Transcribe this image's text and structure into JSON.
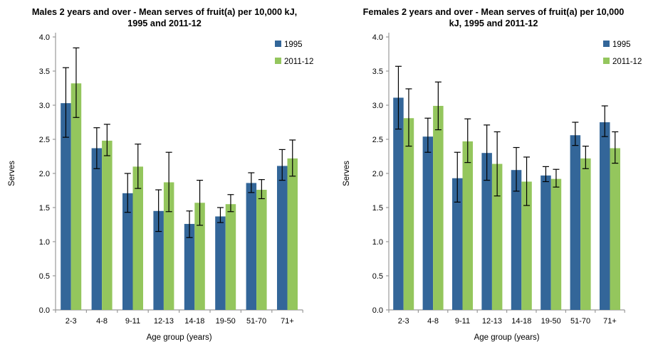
{
  "page": {
    "background": "#FFFFFF"
  },
  "legend": {
    "items": [
      "1995",
      "2011-12"
    ]
  },
  "colors": {
    "series_1995": "#336699",
    "series_2011": "#94C65D",
    "error_bar": "#000000",
    "axis_line": "#999999"
  },
  "chart_data": [
    {
      "type": "bar",
      "title": "Males 2 years and over - Mean serves of fruit(a) per 10,000 kJ, 1995 and 2011-12",
      "xlabel": "Age group (years)",
      "ylabel": "Serves",
      "ylim": [
        0,
        4
      ],
      "ytick_step": 0.5,
      "ytick_labels": [
        "0.0",
        "0.5",
        "1.0",
        "1.5",
        "2.0",
        "2.5",
        "3.0",
        "3.5",
        "4.0"
      ],
      "grid": false,
      "legend_position": "top-right",
      "error_bars": true,
      "categories": [
        "2-3",
        "4-8",
        "9-11",
        "12-13",
        "14-18",
        "19-50",
        "51-70",
        "71+"
      ],
      "series": [
        {
          "name": "1995",
          "color": "#336699",
          "values": [
            3.03,
            2.37,
            1.71,
            1.45,
            1.26,
            1.37,
            1.86,
            2.11
          ],
          "err_low": [
            2.53,
            2.07,
            1.43,
            1.15,
            1.06,
            1.28,
            1.72,
            1.9
          ],
          "err_high": [
            3.55,
            2.67,
            2.0,
            1.76,
            1.45,
            1.5,
            2.01,
            2.35
          ]
        },
        {
          "name": "2011-12",
          "color": "#94C65D",
          "values": [
            3.32,
            2.48,
            2.1,
            1.87,
            1.57,
            1.55,
            1.76,
            2.22
          ],
          "err_low": [
            2.82,
            2.26,
            1.78,
            1.44,
            1.24,
            1.44,
            1.63,
            1.96
          ],
          "err_high": [
            3.84,
            2.72,
            2.43,
            2.31,
            1.9,
            1.69,
            1.91,
            2.49
          ]
        }
      ]
    },
    {
      "type": "bar",
      "title": "Females 2 years and over - Mean serves of fruit(a) per 10,000 kJ, 1995 and 2011-12",
      "xlabel": "Age group (years)",
      "ylabel": "Serves",
      "ylim": [
        0,
        4
      ],
      "ytick_step": 0.5,
      "ytick_labels": [
        "0.0",
        "0.5",
        "1.0",
        "1.5",
        "2.0",
        "2.5",
        "3.0",
        "3.5",
        "4.0"
      ],
      "grid": false,
      "legend_position": "top-right",
      "error_bars": true,
      "categories": [
        "2-3",
        "4-8",
        "9-11",
        "12-13",
        "14-18",
        "19-50",
        "51-70",
        "71+"
      ],
      "series": [
        {
          "name": "1995",
          "color": "#336699",
          "values": [
            3.11,
            2.54,
            1.93,
            2.3,
            2.05,
            1.97,
            2.56,
            2.75
          ],
          "err_low": [
            2.65,
            2.31,
            1.58,
            1.9,
            1.74,
            1.88,
            2.41,
            2.54
          ],
          "err_high": [
            3.57,
            2.81,
            2.31,
            2.71,
            2.38,
            2.1,
            2.75,
            2.99
          ]
        },
        {
          "name": "2011-12",
          "color": "#94C65D",
          "values": [
            2.81,
            2.99,
            2.47,
            2.14,
            1.88,
            1.92,
            2.22,
            2.37
          ],
          "err_low": [
            2.4,
            2.64,
            2.16,
            1.67,
            1.53,
            1.8,
            2.07,
            2.15
          ],
          "err_high": [
            3.24,
            3.34,
            2.8,
            2.61,
            2.24,
            2.06,
            2.4,
            2.61
          ]
        }
      ]
    }
  ]
}
